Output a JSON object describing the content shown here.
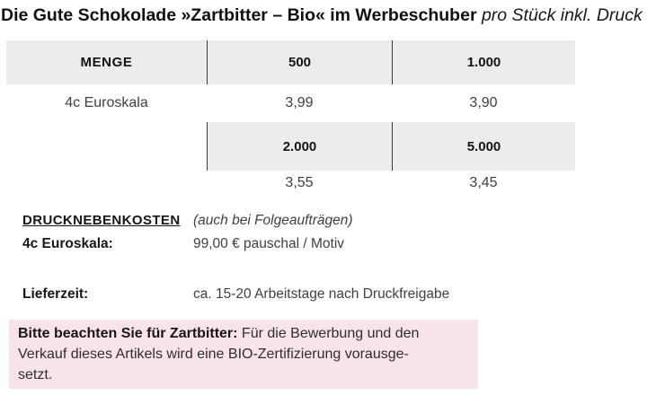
{
  "title": {
    "bold": "Die Gute Schokolade »Zartbitter – Bio« im Werbeschuber",
    "italic": " pro Stück inkl. Druck"
  },
  "table": {
    "header1": [
      "MENGE",
      "500",
      "1.000"
    ],
    "row1": [
      "4c Euroskala",
      "3,99",
      "3,90"
    ],
    "header2": [
      "2.000",
      "5.000"
    ],
    "row2": [
      "3,55",
      "3,45"
    ]
  },
  "print_costs": {
    "heading": "DRUCKNEBENKOSTEN",
    "heading_note": "(auch bei Folgeaufträgen)",
    "label": "4c Euroskala:",
    "value": "99,00 € pauschal / Motiv"
  },
  "delivery": {
    "label": "Lieferzeit:",
    "value": "ca. 15-20 Arbeitstage nach Druckfreigabe"
  },
  "notice": {
    "line1_bold": "Bitte beachten Sie für Zartbitter:",
    "line1_rest": " Für die Bewerbung und den",
    "line2": "Verkauf dieses Artikels wird eine BIO-Zertifizierung vorausge-",
    "line3": "setzt."
  },
  "colors": {
    "table_header_bg": "#ececec",
    "table_divider": "#3a3a3a",
    "notice_bg": "#f8e2ec",
    "heading_text": "#161616",
    "body_text": "#3f3f3f"
  }
}
